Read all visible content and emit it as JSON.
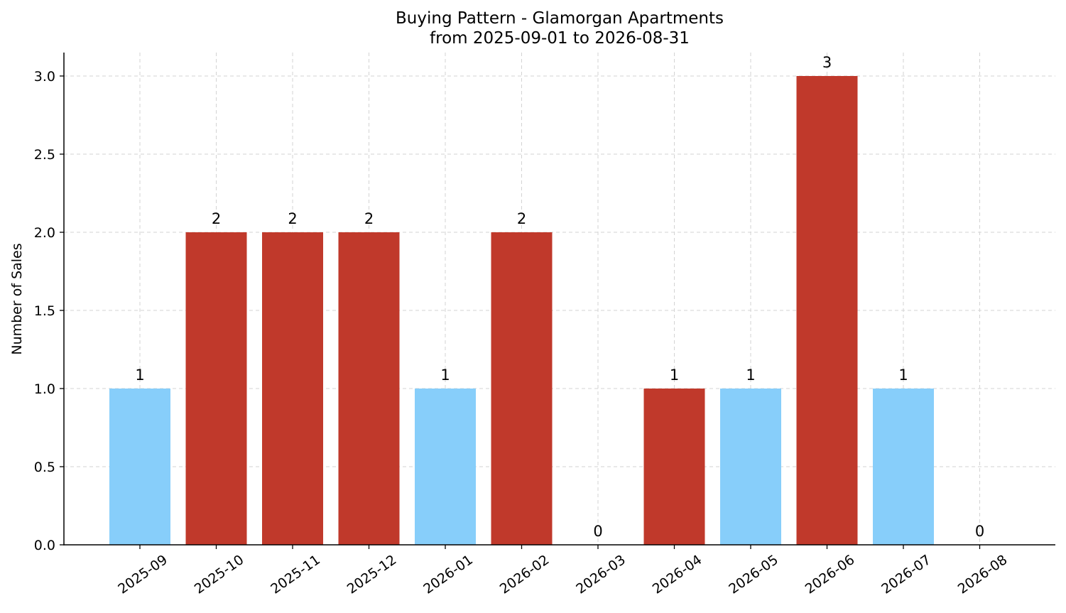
{
  "chart_data": {
    "type": "bar",
    "title": "Buying Pattern - Glamorgan Apartments",
    "subtitle": "from 2025-09-01 to 2026-08-31",
    "xlabel": "",
    "ylabel": "Number of Sales",
    "categories": [
      "2025-09",
      "2025-10",
      "2025-11",
      "2025-12",
      "2026-01",
      "2026-02",
      "2026-03",
      "2026-04",
      "2026-05",
      "2026-06",
      "2026-07",
      "2026-08"
    ],
    "values": [
      1,
      2,
      2,
      2,
      1,
      2,
      0,
      1,
      1,
      3,
      1,
      0
    ],
    "bar_colors": [
      "#87cefa",
      "#c0392b",
      "#c0392b",
      "#c0392b",
      "#87cefa",
      "#c0392b",
      "#87cefa",
      "#c0392b",
      "#87cefa",
      "#c0392b",
      "#87cefa",
      "#87cefa"
    ],
    "ylim": [
      0,
      3.15
    ],
    "yticks": [
      0.0,
      0.5,
      1.0,
      1.5,
      2.0,
      2.5,
      3.0
    ],
    "ytick_labels": [
      "0.0",
      "0.5",
      "1.0",
      "1.5",
      "2.0",
      "2.5",
      "3.0"
    ],
    "grid": true,
    "legend": "none"
  }
}
